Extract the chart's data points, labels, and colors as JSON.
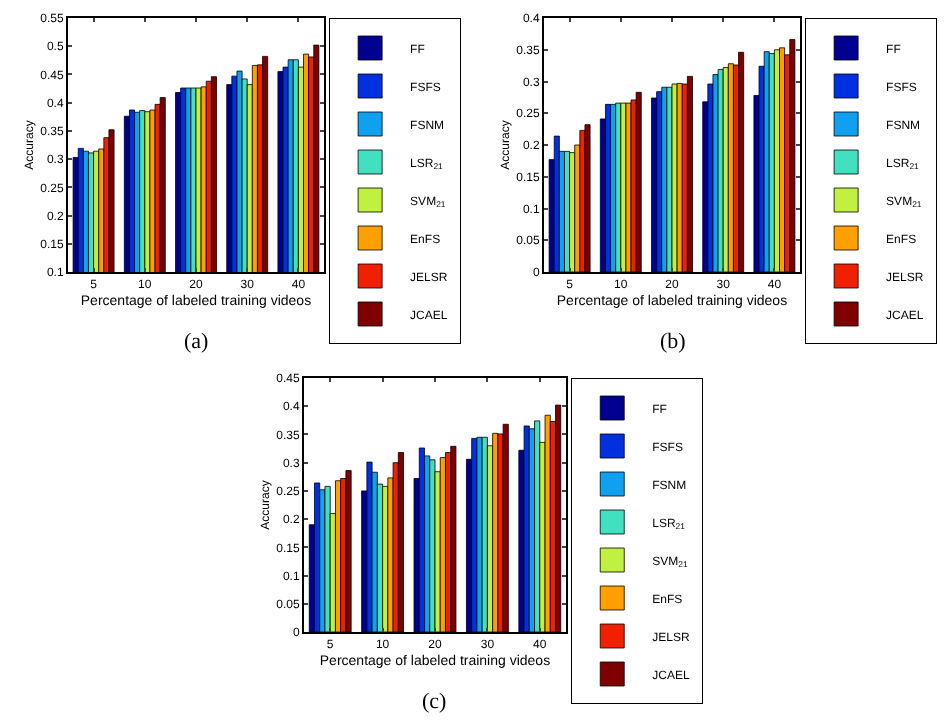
{
  "chart_data": [
    {
      "type": "bar",
      "xlabel": "Percentage of labeled training videos",
      "ylabel": "Accuracy",
      "annotations": [
        "(a)"
      ],
      "categories": [
        "5",
        "10",
        "20",
        "30",
        "40"
      ],
      "ylim": [
        0.1,
        0.55
      ],
      "yticks": [
        0.1,
        0.15,
        0.2,
        0.25,
        0.3,
        0.35,
        0.4,
        0.45,
        0.5,
        0.55
      ],
      "grid": false,
      "legend": "right",
      "series": [
        {
          "name": "FF",
          "color": "#000090",
          "values": [
            0.303,
            0.376,
            0.418,
            0.432,
            0.455
          ]
        },
        {
          "name": "FSFS",
          "color": "#0030e0",
          "values": [
            0.319,
            0.387,
            0.426,
            0.447,
            0.463
          ]
        },
        {
          "name": "FSNM",
          "color": "#10a0f0",
          "values": [
            0.314,
            0.383,
            0.426,
            0.456,
            0.476
          ]
        },
        {
          "name": "LSR$_{21}$",
          "color": "#40e0c0",
          "values": [
            0.311,
            0.386,
            0.426,
            0.442,
            0.476
          ]
        },
        {
          "name": "SVM$_{21}$",
          "color": "#c0f040",
          "values": [
            0.314,
            0.384,
            0.426,
            0.432,
            0.463
          ]
        },
        {
          "name": "EnFS",
          "color": "#ffa000",
          "values": [
            0.318,
            0.387,
            0.428,
            0.466,
            0.486
          ]
        },
        {
          "name": "JELSR",
          "color": "#f02000",
          "values": [
            0.338,
            0.397,
            0.438,
            0.467,
            0.481
          ]
        },
        {
          "name": "JCAEL",
          "color": "#800000",
          "values": [
            0.352,
            0.409,
            0.446,
            0.482,
            0.502
          ]
        }
      ]
    },
    {
      "type": "bar",
      "xlabel": "Percentage of labeled training videos",
      "ylabel": "Accuracy",
      "annotations": [
        "(b)"
      ],
      "categories": [
        "5",
        "10",
        "20",
        "30",
        "40"
      ],
      "ylim": [
        0,
        0.4
      ],
      "yticks": [
        0,
        0.05,
        0.1,
        0.15,
        0.2,
        0.25,
        0.3,
        0.35,
        0.4
      ],
      "grid": false,
      "legend": "right",
      "series": [
        {
          "name": "FF",
          "color": "#000090",
          "values": [
            0.177,
            0.241,
            0.274,
            0.268,
            0.278
          ]
        },
        {
          "name": "FSFS",
          "color": "#0030e0",
          "values": [
            0.214,
            0.264,
            0.284,
            0.296,
            0.324
          ]
        },
        {
          "name": "FSNM",
          "color": "#10a0f0",
          "values": [
            0.19,
            0.264,
            0.291,
            0.311,
            0.347
          ]
        },
        {
          "name": "LSR$_{21}$",
          "color": "#40e0c0",
          "values": [
            0.19,
            0.266,
            0.291,
            0.319,
            0.344
          ]
        },
        {
          "name": "SVM$_{21}$",
          "color": "#c0f040",
          "values": [
            0.188,
            0.266,
            0.296,
            0.322,
            0.35
          ]
        },
        {
          "name": "EnFS",
          "color": "#ffa000",
          "values": [
            0.2,
            0.266,
            0.297,
            0.328,
            0.353
          ]
        },
        {
          "name": "JELSR",
          "color": "#f02000",
          "values": [
            0.223,
            0.271,
            0.296,
            0.326,
            0.342
          ]
        },
        {
          "name": "JCAEL",
          "color": "#800000",
          "values": [
            0.232,
            0.283,
            0.308,
            0.346,
            0.366
          ]
        }
      ]
    },
    {
      "type": "bar",
      "xlabel": "Percentage of labeled training videos",
      "ylabel": "Accuracy",
      "annotations": [
        "(c)"
      ],
      "categories": [
        "5",
        "10",
        "20",
        "30",
        "40"
      ],
      "ylim": [
        0,
        0.45
      ],
      "yticks": [
        0,
        0.05,
        0.1,
        0.15,
        0.2,
        0.25,
        0.3,
        0.35,
        0.4,
        0.45
      ],
      "grid": false,
      "legend": "right",
      "series": [
        {
          "name": "FF",
          "color": "#000090",
          "values": [
            0.19,
            0.25,
            0.272,
            0.306,
            0.322
          ]
        },
        {
          "name": "FSFS",
          "color": "#0030e0",
          "values": [
            0.264,
            0.301,
            0.326,
            0.343,
            0.365
          ]
        },
        {
          "name": "FSNM",
          "color": "#10a0f0",
          "values": [
            0.252,
            0.283,
            0.312,
            0.345,
            0.36
          ]
        },
        {
          "name": "LSR$_{21}$",
          "color": "#40e0c0",
          "values": [
            0.258,
            0.262,
            0.305,
            0.345,
            0.374
          ]
        },
        {
          "name": "SVM$_{21}$",
          "color": "#c0f040",
          "values": [
            0.21,
            0.258,
            0.284,
            0.33,
            0.336
          ]
        },
        {
          "name": "EnFS",
          "color": "#ffa000",
          "values": [
            0.268,
            0.273,
            0.309,
            0.352,
            0.384
          ]
        },
        {
          "name": "JELSR",
          "color": "#f02000",
          "values": [
            0.272,
            0.3,
            0.318,
            0.351,
            0.373
          ]
        },
        {
          "name": "JCAEL",
          "color": "#800000",
          "values": [
            0.286,
            0.318,
            0.329,
            0.368,
            0.402
          ]
        }
      ]
    }
  ]
}
